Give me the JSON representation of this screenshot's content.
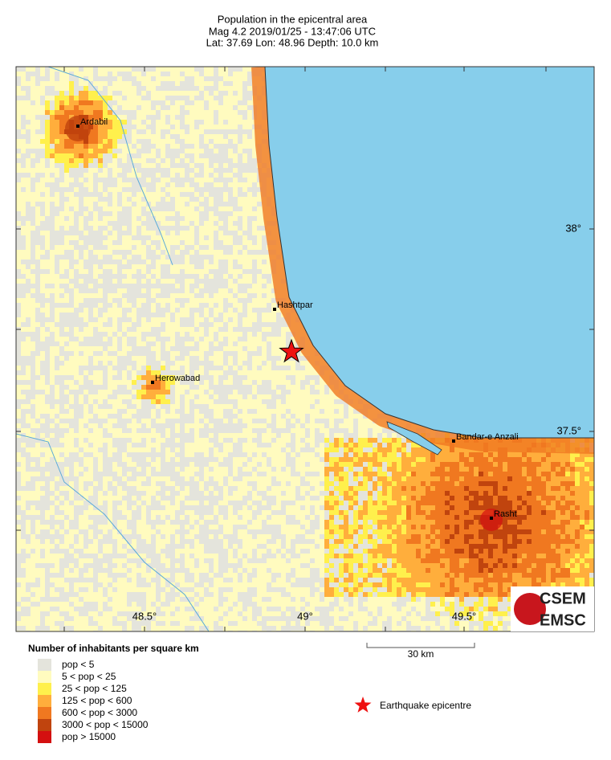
{
  "header": {
    "title": "Population in the epicentral area",
    "line2": "Mag 4.2  2019/01/25 - 13:47:06 UTC",
    "line3": "Lat: 37.69   Lon:  48.96    Depth:  10.0 km"
  },
  "map": {
    "sea_color": "#87ceeb",
    "cities": [
      {
        "label": "Ardabil"
      },
      {
        "label": "Hashtpar"
      },
      {
        "label": "Herowabad"
      },
      {
        "label": "Bandar-e Anzali"
      },
      {
        "label": "Rasht"
      }
    ],
    "lat_labels": [
      "38°",
      "37.5°"
    ],
    "lon_labels": [
      "48.5°",
      "49°",
      "49.5°"
    ]
  },
  "legend": {
    "title": "Number of inhabitants per square km",
    "items": [
      {
        "label": "pop < 5",
        "color": "#e4e4dc"
      },
      {
        "label": "5 < pop < 25",
        "color": "#fffbbf"
      },
      {
        "label": "25 < pop < 125",
        "color": "#fff04c"
      },
      {
        "label": "125 < pop < 600",
        "color": "#ffae3c"
      },
      {
        "label": "600 < pop < 3000",
        "color": "#f07820"
      },
      {
        "label": "3000 < pop < 15000",
        "color": "#c0440e"
      },
      {
        "label": "pop > 15000",
        "color": "#d41010"
      }
    ]
  },
  "scale": {
    "label": "30 km"
  },
  "epicentre": {
    "label": "Earthquake epicentre",
    "color": "#ee1111"
  },
  "logo": {
    "top": "CSEM",
    "bottom": "EMSC"
  }
}
